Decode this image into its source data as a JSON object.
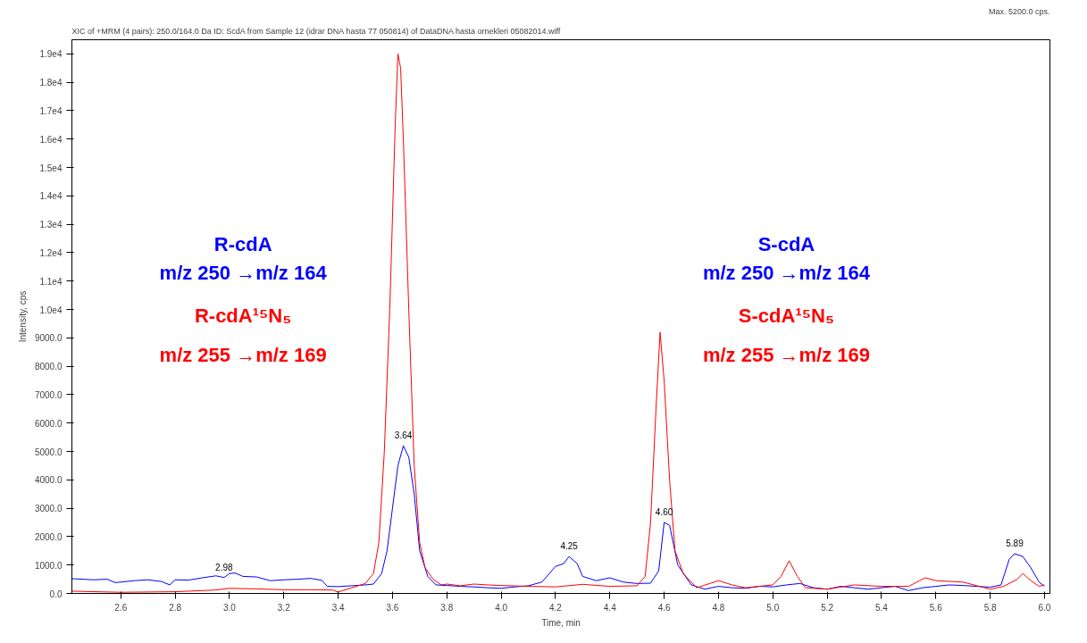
{
  "chart_data": {
    "type": "line",
    "title": "XIC of +MRM (4 pairs): 250.0/164.0 Da ID: ScdA  from Sample 12 (idrar DNA hasta 77 050814) of DataDNA hasta ornekleri 05082014.wiff",
    "xlabel": "Time, min",
    "ylabel": "Intensity, cps",
    "grid": false,
    "marker": "none",
    "line_style": "solid",
    "xlim": [
      2.42,
      6.02
    ],
    "ylim": [
      0,
      19500
    ],
    "xticks": [
      {
        "value": 2.6,
        "label": "2.6"
      },
      {
        "value": 2.8,
        "label": "2.8"
      },
      {
        "value": 3.0,
        "label": "3.0"
      },
      {
        "value": 3.2,
        "label": "3.2"
      },
      {
        "value": 3.4,
        "label": "3.4"
      },
      {
        "value": 3.6,
        "label": "3.6"
      },
      {
        "value": 3.8,
        "label": "3.8"
      },
      {
        "value": 4.0,
        "label": "4.0"
      },
      {
        "value": 4.2,
        "label": "4.2"
      },
      {
        "value": 4.4,
        "label": "4.4"
      },
      {
        "value": 4.6,
        "label": "4.6"
      },
      {
        "value": 4.8,
        "label": "4.8"
      },
      {
        "value": 5.0,
        "label": "5.0"
      },
      {
        "value": 5.2,
        "label": "5.2"
      },
      {
        "value": 5.4,
        "label": "5.4"
      },
      {
        "value": 5.6,
        "label": "5.6"
      },
      {
        "value": 5.8,
        "label": "5.8"
      },
      {
        "value": 6.0,
        "label": "6.0"
      }
    ],
    "yticks": [
      {
        "value": 0,
        "label": "0.0"
      },
      {
        "value": 1000,
        "label": "1000.0"
      },
      {
        "value": 2000,
        "label": "2000.0"
      },
      {
        "value": 3000,
        "label": "3000.0"
      },
      {
        "value": 4000,
        "label": "4000.0"
      },
      {
        "value": 5000,
        "label": "5000.0"
      },
      {
        "value": 6000,
        "label": "6000.0"
      },
      {
        "value": 7000,
        "label": "7000.0"
      },
      {
        "value": 8000,
        "label": "8000.0"
      },
      {
        "value": 9000,
        "label": "9000.0"
      },
      {
        "value": 10000,
        "label": "1.0e4"
      },
      {
        "value": 11000,
        "label": "1.1e4"
      },
      {
        "value": 12000,
        "label": "1.2e4"
      },
      {
        "value": 13000,
        "label": "1.3e4"
      },
      {
        "value": 14000,
        "label": "1.4e4"
      },
      {
        "value": 15000,
        "label": "1.5e4"
      },
      {
        "value": 16000,
        "label": "1.6e4"
      },
      {
        "value": 17000,
        "label": "1.7e4"
      },
      {
        "value": 18000,
        "label": "1.8e4"
      },
      {
        "value": 19000,
        "label": "1.9e4"
      }
    ],
    "series": [
      {
        "color": "#0000ff",
        "x": [
          2.42,
          2.5,
          2.55,
          2.58,
          2.65,
          2.7,
          2.75,
          2.78,
          2.8,
          2.85,
          2.9,
          2.95,
          2.98,
          3.0,
          3.02,
          3.05,
          3.1,
          3.15,
          3.2,
          3.25,
          3.3,
          3.34,
          3.36,
          3.4,
          3.45,
          3.5,
          3.53,
          3.56,
          3.58,
          3.6,
          3.62,
          3.64,
          3.66,
          3.68,
          3.7,
          3.73,
          3.76,
          3.8,
          3.85,
          3.9,
          3.95,
          4.0,
          4.05,
          4.1,
          4.15,
          4.2,
          4.23,
          4.25,
          4.28,
          4.3,
          4.35,
          4.4,
          4.45,
          4.5,
          4.55,
          4.58,
          4.6,
          4.62,
          4.65,
          4.7,
          4.75,
          4.8,
          4.85,
          4.9,
          4.95,
          5.0,
          5.05,
          5.1,
          5.15,
          5.2,
          5.25,
          5.3,
          5.35,
          5.4,
          5.45,
          5.5,
          5.55,
          5.6,
          5.65,
          5.7,
          5.75,
          5.8,
          5.84,
          5.87,
          5.89,
          5.92,
          5.95,
          5.98,
          6.0
        ],
        "values": [
          520,
          480,
          500,
          380,
          450,
          480,
          420,
          300,
          480,
          470,
          550,
          620,
          560,
          700,
          720,
          600,
          580,
          450,
          480,
          500,
          530,
          460,
          250,
          240,
          270,
          300,
          330,
          700,
          1500,
          3000,
          4500,
          5200,
          4800,
          3500,
          1500,
          600,
          300,
          280,
          250,
          230,
          200,
          180,
          230,
          270,
          400,
          950,
          1050,
          1300,
          1050,
          600,
          450,
          550,
          400,
          350,
          360,
          800,
          2500,
          2400,
          1000,
          300,
          150,
          250,
          200,
          180,
          250,
          230,
          300,
          350,
          200,
          150,
          250,
          200,
          150,
          200,
          250,
          100,
          200,
          250,
          300,
          280,
          250,
          220,
          300,
          1200,
          1400,
          1300,
          900,
          400,
          250
        ]
      },
      {
        "color": "#ff0000",
        "x": [
          2.42,
          2.6,
          2.8,
          2.95,
          3.0,
          3.1,
          3.2,
          3.3,
          3.38,
          3.4,
          3.45,
          3.5,
          3.53,
          3.55,
          3.57,
          3.59,
          3.61,
          3.62,
          3.63,
          3.64,
          3.66,
          3.68,
          3.7,
          3.72,
          3.75,
          3.78,
          3.8,
          3.85,
          3.9,
          3.95,
          4.0,
          4.1,
          4.2,
          4.3,
          4.4,
          4.5,
          4.53,
          4.55,
          4.57,
          4.585,
          4.6,
          4.62,
          4.64,
          4.67,
          4.72,
          4.8,
          4.85,
          4.9,
          5.0,
          5.03,
          5.06,
          5.09,
          5.12,
          5.2,
          5.3,
          5.4,
          5.5,
          5.56,
          5.6,
          5.7,
          5.8,
          5.85,
          5.9,
          5.92,
          5.95,
          5.98,
          6.0
        ],
        "values": [
          80,
          40,
          60,
          120,
          180,
          160,
          130,
          130,
          120,
          50,
          200,
          350,
          700,
          1800,
          5000,
          10000,
          16500,
          19000,
          18500,
          16000,
          10000,
          4500,
          1800,
          900,
          500,
          300,
          330,
          270,
          330,
          300,
          280,
          250,
          230,
          320,
          250,
          270,
          600,
          2500,
          6500,
          9200,
          7500,
          4000,
          1500,
          700,
          200,
          450,
          300,
          200,
          300,
          600,
          1150,
          600,
          200,
          150,
          300,
          250,
          250,
          550,
          450,
          400,
          150,
          250,
          500,
          700,
          450,
          250,
          300
        ]
      }
    ],
    "annotations": [
      "Max. 5200.0 cps.",
      "R-cdA",
      "m/z 250 →m/z 164",
      "R-cdA¹⁵N₅",
      "m/z 255 →m/z 169",
      "S-cdA",
      "m/z 250 →m/z 164",
      "S-cdA¹⁵N₅",
      "m/z 255 →m/z 169",
      {
        "text": "2.98",
        "x": 2.98,
        "y": 560
      },
      {
        "text": "3.64",
        "x": 3.64,
        "y": 5200
      },
      {
        "text": "4.25",
        "x": 4.25,
        "y": 1300
      },
      {
        "text": "4.60",
        "x": 4.6,
        "y": 2500
      },
      {
        "text": "5.89",
        "x": 5.89,
        "y": 1400
      }
    ]
  }
}
